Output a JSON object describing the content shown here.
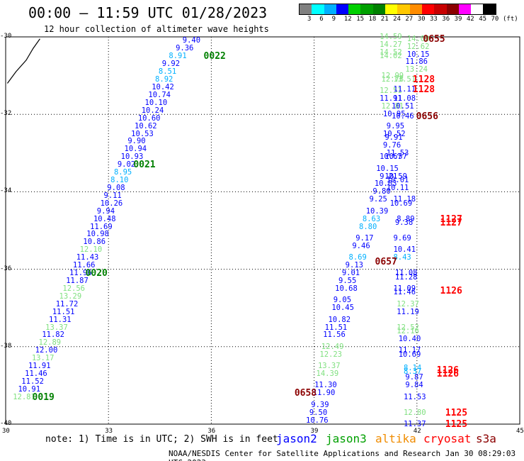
{
  "title": "00:00 – 11:59 UTC 01/28/2023",
  "subtitle": "12 hour collection of altimeter wave heights",
  "color_scale": {
    "unit": "(ft)",
    "labels": [
      "3",
      "6",
      "9",
      "12",
      "15",
      "18",
      "21",
      "24",
      "27",
      "30",
      "33",
      "36",
      "39",
      "42",
      "45",
      "70"
    ],
    "colors": [
      "#808080",
      "#00ffff",
      "#00b0ff",
      "#0000ff",
      "#00d000",
      "#00a000",
      "#008000",
      "#ffff00",
      "#ffc800",
      "#ff8c00",
      "#ff0000",
      "#c80000",
      "#8b0000",
      "#ff00ff",
      "#ffffff",
      "#000000"
    ]
  },
  "axes": {
    "x_ticks": [
      "30",
      "33",
      "36",
      "39",
      "42",
      "45"
    ],
    "y_ticks": [
      "-30",
      "-32",
      "-34",
      "-36",
      "-38",
      "-40"
    ],
    "x_range": [
      30,
      45
    ],
    "y_range": [
      -40,
      -30
    ]
  },
  "note": "note: 1) Time is in UTC; 2) SWH is in feet",
  "legend": [
    {
      "name": "jason2",
      "color": "#0000ff"
    },
    {
      "name": "jason3",
      "color": "#00a000"
    },
    {
      "name": "altika",
      "color": "#f08c00"
    },
    {
      "name": "cryosat",
      "color": "#ff0000"
    },
    {
      "name": "s3a",
      "color": "#8b0000"
    }
  ],
  "footer": "NOAA/NESDIS Center for Satellite Applications and Research   Jan 30 08:29:03 UTC 2023",
  "coastline": [
    [
      30.05,
      -31.2
    ],
    [
      30.3,
      -30.9
    ],
    [
      30.6,
      -30.6
    ],
    [
      30.8,
      -30.3
    ],
    [
      31.0,
      -30.05
    ]
  ],
  "tracks": [
    {
      "points": [
        {
          "lon": 35.45,
          "lat": -30.1,
          "v": "9.40",
          "c": "#0000ff"
        },
        {
          "lon": 35.25,
          "lat": -30.3,
          "v": "9.36",
          "c": "#0000ff"
        },
        {
          "lon": 35.05,
          "lat": -30.5,
          "v": "8.91",
          "c": "#00b0ff"
        },
        {
          "lon": 34.85,
          "lat": -30.7,
          "v": "9.92",
          "c": "#0000ff"
        },
        {
          "lon": 34.75,
          "lat": -30.9,
          "v": "8.51",
          "c": "#00b0ff"
        },
        {
          "lon": 34.65,
          "lat": -31.1,
          "v": "8.92",
          "c": "#00b0ff"
        },
        {
          "lon": 34.55,
          "lat": -31.3,
          "v": "10.42",
          "c": "#0000ff"
        },
        {
          "lon": 34.45,
          "lat": -31.5,
          "v": "10.74",
          "c": "#0000ff"
        },
        {
          "lon": 34.35,
          "lat": -31.7,
          "v": "10.10",
          "c": "#0000ff"
        },
        {
          "lon": 34.25,
          "lat": -31.9,
          "v": "10.24",
          "c": "#0000ff"
        },
        {
          "lon": 34.15,
          "lat": -32.1,
          "v": "10.60",
          "c": "#0000ff"
        },
        {
          "lon": 34.05,
          "lat": -32.3,
          "v": "10.62",
          "c": "#0000ff"
        },
        {
          "lon": 33.95,
          "lat": -32.5,
          "v": "10.53",
          "c": "#0000ff"
        },
        {
          "lon": 33.85,
          "lat": -32.7,
          "v": "9.90",
          "c": "#0000ff"
        },
        {
          "lon": 33.75,
          "lat": -32.9,
          "v": "10.94",
          "c": "#0000ff"
        },
        {
          "lon": 33.65,
          "lat": -33.1,
          "v": "10.93",
          "c": "#0000ff"
        },
        {
          "lon": 33.55,
          "lat": -33.3,
          "v": "9.02",
          "c": "#0000ff"
        },
        {
          "lon": 33.45,
          "lat": -33.5,
          "v": "8.95",
          "c": "#00b0ff"
        },
        {
          "lon": 33.35,
          "lat": -33.7,
          "v": "8.10",
          "c": "#00b0ff"
        },
        {
          "lon": 33.25,
          "lat": -33.9,
          "v": "9.08",
          "c": "#0000ff"
        },
        {
          "lon": 33.15,
          "lat": -34.1,
          "v": "9.11",
          "c": "#0000ff"
        },
        {
          "lon": 33.05,
          "lat": -34.3,
          "v": "10.26",
          "c": "#0000ff"
        },
        {
          "lon": 32.95,
          "lat": -34.5,
          "v": "9.94",
          "c": "#0000ff"
        },
        {
          "lon": 32.85,
          "lat": -34.7,
          "v": "10.48",
          "c": "#0000ff"
        },
        {
          "lon": 32.75,
          "lat": -34.9,
          "v": "11.69",
          "c": "#0000ff"
        },
        {
          "lon": 32.65,
          "lat": -35.1,
          "v": "10.98",
          "c": "#0000ff"
        },
        {
          "lon": 32.55,
          "lat": -35.3,
          "v": "10.86",
          "c": "#0000ff"
        },
        {
          "lon": 32.45,
          "lat": -35.5,
          "v": "12.10",
          "c": "#80e080"
        },
        {
          "lon": 32.35,
          "lat": -35.7,
          "v": "11.43",
          "c": "#0000ff"
        },
        {
          "lon": 32.25,
          "lat": -35.9,
          "v": "11.66",
          "c": "#0000ff"
        },
        {
          "lon": 32.15,
          "lat": -36.1,
          "v": "11.96",
          "c": "#0000ff"
        },
        {
          "lon": 32.05,
          "lat": -36.3,
          "v": "11.87",
          "c": "#0000ff"
        },
        {
          "lon": 31.95,
          "lat": -36.5,
          "v": "12.56",
          "c": "#80e080"
        },
        {
          "lon": 31.85,
          "lat": -36.7,
          "v": "13.29",
          "c": "#80e080"
        },
        {
          "lon": 31.75,
          "lat": -36.9,
          "v": "11.72",
          "c": "#0000ff"
        },
        {
          "lon": 31.65,
          "lat": -37.1,
          "v": "11.51",
          "c": "#0000ff"
        },
        {
          "lon": 31.55,
          "lat": -37.3,
          "v": "11.31",
          "c": "#0000ff"
        },
        {
          "lon": 31.45,
          "lat": -37.5,
          "v": "13.37",
          "c": "#80e080"
        },
        {
          "lon": 31.35,
          "lat": -37.7,
          "v": "11.82",
          "c": "#0000ff"
        },
        {
          "lon": 31.25,
          "lat": -37.9,
          "v": "12.89",
          "c": "#80e080"
        },
        {
          "lon": 31.15,
          "lat": -38.1,
          "v": "12.00",
          "c": "#0000ff"
        },
        {
          "lon": 31.05,
          "lat": -38.3,
          "v": "13.17",
          "c": "#80e080"
        },
        {
          "lon": 30.95,
          "lat": -38.5,
          "v": "11.91",
          "c": "#0000ff"
        },
        {
          "lon": 30.85,
          "lat": -38.7,
          "v": "11.46",
          "c": "#0000ff"
        },
        {
          "lon": 30.75,
          "lat": -38.9,
          "v": "11.52",
          "c": "#0000ff"
        },
        {
          "lon": 30.65,
          "lat": -39.1,
          "v": "10.91",
          "c": "#0000ff"
        },
        {
          "lon": 30.5,
          "lat": -39.3,
          "v": "12.81",
          "c": "#80e080"
        }
      ],
      "times": [
        {
          "lon": 35.9,
          "lat": -30.5,
          "t": "0022",
          "c": "#008000"
        },
        {
          "lon": 33.85,
          "lat": -33.3,
          "t": "0021",
          "c": "#008000"
        },
        {
          "lon": 32.45,
          "lat": -36.1,
          "t": "0020",
          "c": "#008000"
        },
        {
          "lon": 30.9,
          "lat": -39.3,
          "t": "0019",
          "c": "#008000"
        }
      ]
    },
    {
      "points": [
        {
          "lon": 41.2,
          "lat": -30.0,
          "v": "14.59",
          "c": "#80e080"
        },
        {
          "lon": 41.2,
          "lat": -30.2,
          "v": "14.27",
          "c": "#80e080"
        },
        {
          "lon": 41.2,
          "lat": -30.4,
          "v": "14.52",
          "c": "#80e080"
        },
        {
          "lon": 41.2,
          "lat": -30.5,
          "v": "14.02",
          "c": "#80e080"
        },
        {
          "lon": 41.25,
          "lat": -31.0,
          "v": "12.99",
          "c": "#80e080"
        },
        {
          "lon": 41.25,
          "lat": -31.1,
          "v": "12.78",
          "c": "#80e080"
        },
        {
          "lon": 41.2,
          "lat": -31.4,
          "v": "12.51",
          "c": "#80e080"
        },
        {
          "lon": 41.2,
          "lat": -31.6,
          "v": "11.91",
          "c": "#0000ff"
        },
        {
          "lon": 41.25,
          "lat": -31.8,
          "v": "12.81",
          "c": "#80e080"
        },
        {
          "lon": 41.3,
          "lat": -32.0,
          "v": "10.95",
          "c": "#0000ff"
        },
        {
          "lon": 41.4,
          "lat": -32.3,
          "v": "9.95",
          "c": "#0000ff"
        },
        {
          "lon": 41.3,
          "lat": -32.5,
          "v": "10.52",
          "c": "#0000ff"
        },
        {
          "lon": 41.35,
          "lat": -32.6,
          "v": "9.91",
          "c": "#0000ff"
        },
        {
          "lon": 41.3,
          "lat": -32.8,
          "v": "9.76",
          "c": "#0000ff"
        },
        {
          "lon": 41.4,
          "lat": -33.0,
          "v": "11.53",
          "c": "#0000ff"
        },
        {
          "lon": 41.2,
          "lat": -33.1,
          "v": "10.67",
          "c": "#0000ff"
        },
        {
          "lon": 41.35,
          "lat": -33.1,
          "v": "10.57",
          "c": "#0000ff"
        },
        {
          "lon": 41.1,
          "lat": -33.4,
          "v": "10.15",
          "c": "#0000ff"
        },
        {
          "lon": 41.2,
          "lat": -33.6,
          "v": "9.21",
          "c": "#0000ff"
        },
        {
          "lon": 41.35,
          "lat": -33.6,
          "v": "10.59",
          "c": "#0000ff"
        },
        {
          "lon": 41.4,
          "lat": -33.7,
          "v": "10.01",
          "c": "#0000ff"
        },
        {
          "lon": 41.05,
          "lat": -33.8,
          "v": "10.03",
          "c": "#0000ff"
        },
        {
          "lon": 41.4,
          "lat": -33.9,
          "v": "10.11",
          "c": "#0000ff"
        },
        {
          "lon": 41.0,
          "lat": -34.0,
          "v": "9.80",
          "c": "#0000ff"
        },
        {
          "lon": 40.9,
          "lat": -34.2,
          "v": "9.25",
          "c": "#0000ff"
        },
        {
          "lon": 41.6,
          "lat": -34.2,
          "v": "11.18",
          "c": "#0000ff"
        },
        {
          "lon": 40.8,
          "lat": -34.5,
          "v": "10.39",
          "c": "#0000ff"
        },
        {
          "lon": 41.5,
          "lat": -34.3,
          "v": "10.69",
          "c": "#0000ff"
        },
        {
          "lon": 40.7,
          "lat": -34.7,
          "v": "8.63",
          "c": "#00b0ff"
        },
        {
          "lon": 41.7,
          "lat": -34.7,
          "v": "8.89",
          "c": "#0000ff"
        },
        {
          "lon": 41.65,
          "lat": -34.8,
          "v": "9.38",
          "c": "#0000ff"
        },
        {
          "lon": 40.6,
          "lat": -34.9,
          "v": "8.80",
          "c": "#00b0ff"
        },
        {
          "lon": 40.5,
          "lat": -35.2,
          "v": "9.17",
          "c": "#0000ff"
        },
        {
          "lon": 41.6,
          "lat": -35.2,
          "v": "9.69",
          "c": "#0000ff"
        },
        {
          "lon": 40.4,
          "lat": -35.4,
          "v": "9.46",
          "c": "#0000ff"
        },
        {
          "lon": 41.6,
          "lat": -35.5,
          "v": "10.41",
          "c": "#0000ff"
        },
        {
          "lon": 40.3,
          "lat": -35.7,
          "v": "8.69",
          "c": "#00b0ff"
        },
        {
          "lon": 41.6,
          "lat": -35.7,
          "v": "8.43",
          "c": "#00b0ff"
        },
        {
          "lon": 40.2,
          "lat": -35.9,
          "v": "9.13",
          "c": "#0000ff"
        },
        {
          "lon": 40.1,
          "lat": -36.1,
          "v": "9.01",
          "c": "#0000ff"
        },
        {
          "lon": 41.65,
          "lat": -36.1,
          "v": "11.08",
          "c": "#0000ff"
        },
        {
          "lon": 41.65,
          "lat": -36.2,
          "v": "11.28",
          "c": "#0000ff"
        },
        {
          "lon": 40.0,
          "lat": -36.3,
          "v": "9.55",
          "c": "#0000ff"
        },
        {
          "lon": 39.9,
          "lat": -36.5,
          "v": "10.68",
          "c": "#0000ff"
        },
        {
          "lon": 41.6,
          "lat": -36.5,
          "v": "11.09",
          "c": "#0000ff"
        },
        {
          "lon": 41.6,
          "lat": -36.6,
          "v": "11.46",
          "c": "#0000ff"
        },
        {
          "lon": 39.85,
          "lat": -36.8,
          "v": "9.05",
          "c": "#0000ff"
        },
        {
          "lon": 41.7,
          "lat": -36.9,
          "v": "12.37",
          "c": "#80e080"
        },
        {
          "lon": 39.8,
          "lat": -37.0,
          "v": "10.45",
          "c": "#0000ff"
        },
        {
          "lon": 41.7,
          "lat": -37.1,
          "v": "11.19",
          "c": "#0000ff"
        },
        {
          "lon": 39.7,
          "lat": -37.3,
          "v": "10.82",
          "c": "#0000ff"
        },
        {
          "lon": 39.6,
          "lat": -37.5,
          "v": "11.51",
          "c": "#0000ff"
        },
        {
          "lon": 41.7,
          "lat": -37.5,
          "v": "12.52",
          "c": "#80e080"
        },
        {
          "lon": 41.7,
          "lat": -37.6,
          "v": "12.16",
          "c": "#80e080"
        },
        {
          "lon": 39.55,
          "lat": -37.7,
          "v": "11.56",
          "c": "#0000ff"
        },
        {
          "lon": 41.75,
          "lat": -37.8,
          "v": "10.40",
          "c": "#0000ff"
        },
        {
          "lon": 39.5,
          "lat": -38.0,
          "v": "12.49",
          "c": "#80e080"
        },
        {
          "lon": 41.75,
          "lat": -38.1,
          "v": "11.17",
          "c": "#0000ff"
        },
        {
          "lon": 41.75,
          "lat": -38.2,
          "v": "10.69",
          "c": "#0000ff"
        },
        {
          "lon": 39.45,
          "lat": -38.2,
          "v": "12.23",
          "c": "#80e080"
        },
        {
          "lon": 39.4,
          "lat": -38.5,
          "v": "13.37",
          "c": "#80e080"
        },
        {
          "lon": 41.9,
          "lat": -38.55,
          "v": "8.14",
          "c": "#00b0ff"
        },
        {
          "lon": 41.9,
          "lat": -38.65,
          "v": "8.37",
          "c": "#00b0ff"
        },
        {
          "lon": 39.35,
          "lat": -38.7,
          "v": "14.39",
          "c": "#80e080"
        },
        {
          "lon": 41.95,
          "lat": -38.8,
          "v": "9.87",
          "c": "#0000ff"
        },
        {
          "lon": 39.3,
          "lat": -39.0,
          "v": "11.30",
          "c": "#0000ff"
        },
        {
          "lon": 41.95,
          "lat": -39.0,
          "v": "9.84",
          "c": "#0000ff"
        },
        {
          "lon": 39.25,
          "lat": -39.2,
          "v": "11.90",
          "c": "#0000ff"
        },
        {
          "lon": 41.9,
          "lat": -39.3,
          "v": "11.53",
          "c": "#0000ff"
        },
        {
          "lon": 39.2,
          "lat": -39.5,
          "v": "9.39",
          "c": "#0000ff"
        },
        {
          "lon": 39.15,
          "lat": -39.7,
          "v": "9.50",
          "c": "#0000ff"
        },
        {
          "lon": 41.9,
          "lat": -39.7,
          "v": "12.80",
          "c": "#80e080"
        },
        {
          "lon": 39.05,
          "lat": -39.9,
          "v": "10.76",
          "c": "#0000ff"
        },
        {
          "lon": 41.9,
          "lat": -40.0,
          "v": "11.37",
          "c": "#0000ff"
        }
      ],
      "times": []
    },
    {
      "points": [
        {
          "lon": 42.0,
          "lat": -30.05,
          "v": "14.00",
          "c": "#80e080"
        },
        {
          "lon": 42.0,
          "lat": -30.25,
          "v": "12.62",
          "c": "#80e080"
        },
        {
          "lon": 42.0,
          "lat": -30.45,
          "v": "10.15",
          "c": "#0000ff"
        },
        {
          "lon": 41.95,
          "lat": -30.65,
          "v": "11.86",
          "c": "#0000ff"
        },
        {
          "lon": 41.95,
          "lat": -30.85,
          "v": "13.24",
          "c": "#80e080"
        },
        {
          "lon": 41.6,
          "lat": -31.1,
          "v": "13.51",
          "c": "#80e080"
        },
        {
          "lon": 41.6,
          "lat": -31.35,
          "v": "11.11",
          "c": "#0000ff"
        },
        {
          "lon": 41.6,
          "lat": -31.6,
          "v": "11.08",
          "c": "#0000ff"
        },
        {
          "lon": 41.55,
          "lat": -31.8,
          "v": "10.51",
          "c": "#0000ff"
        },
        {
          "lon": 41.55,
          "lat": -32.05,
          "v": "10.46",
          "c": "#0000ff"
        }
      ],
      "times": [
        {
          "lon": 42.3,
          "lat": -30.05,
          "t": "0655",
          "c": "#8b0000"
        },
        {
          "lon": 42.1,
          "lat": -32.05,
          "t": "0656",
          "c": "#8b0000"
        },
        {
          "lon": 40.9,
          "lat": -35.8,
          "t": "0657",
          "c": "#8b0000"
        },
        {
          "lon": 38.55,
          "lat": -39.2,
          "t": "0658",
          "c": "#8b0000"
        }
      ]
    }
  ],
  "cryosat_times": [
    {
      "lon": 42.0,
      "lat": -31.1,
      "t": "1128",
      "c": "#ff0000"
    },
    {
      "lon": 42.0,
      "lat": -31.35,
      "t": "1128",
      "c": "#ff0000"
    },
    {
      "lon": 42.8,
      "lat": -34.7,
      "t": "1127",
      "c": "#ff0000"
    },
    {
      "lon": 42.8,
      "lat": -34.8,
      "t": "1127",
      "c": "#ff0000"
    },
    {
      "lon": 42.8,
      "lat": -36.55,
      "t": "1126",
      "c": "#ff0000"
    },
    {
      "lon": 42.7,
      "lat": -38.6,
      "t": "1126",
      "c": "#ff0000"
    },
    {
      "lon": 42.7,
      "lat": -38.7,
      "t": "1126",
      "c": "#ff0000"
    },
    {
      "lon": 42.95,
      "lat": -39.7,
      "t": "1125",
      "c": "#ff0000"
    },
    {
      "lon": 42.95,
      "lat": -40.0,
      "t": "1125",
      "c": "#ff0000"
    }
  ]
}
